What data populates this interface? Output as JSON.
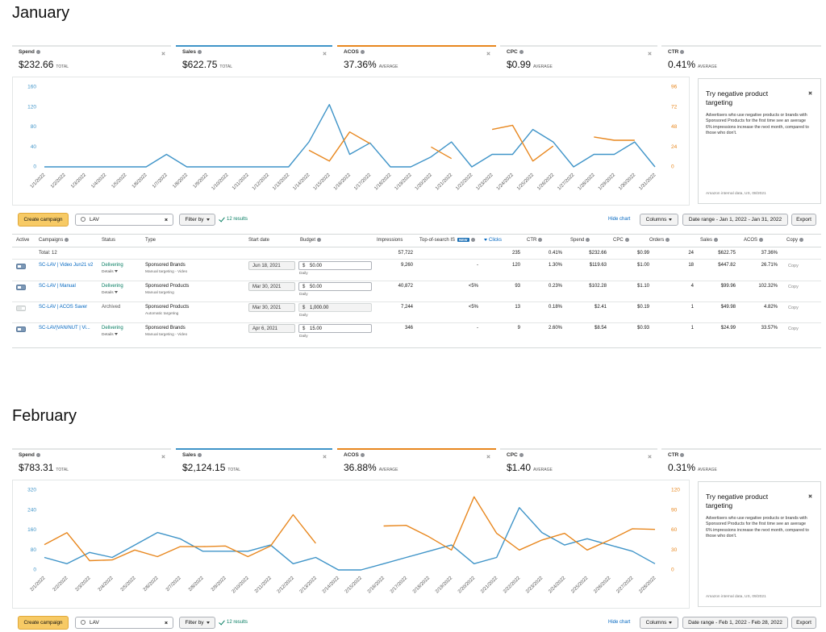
{
  "sections": [
    {
      "heading": "January",
      "metrics": [
        {
          "label": "Spend",
          "value": "$232.66",
          "agg": "TOTAL"
        },
        {
          "label": "Sales",
          "value": "$622.75",
          "agg": "TOTAL",
          "color": "#3f94c8"
        },
        {
          "label": "ACOS",
          "value": "37.36%",
          "agg": "AVERAGE",
          "color": "#e8871e"
        },
        {
          "label": "CPC",
          "value": "$0.99",
          "agg": "AVERAGE"
        },
        {
          "label": "CTR",
          "value": "0.41%",
          "agg": "AVERAGE"
        }
      ],
      "chart": {
        "type": "line",
        "x": [
          "1/1/2022",
          "1/2/2022",
          "1/3/2022",
          "1/4/2022",
          "1/5/2022",
          "1/6/2022",
          "1/7/2022",
          "1/8/2022",
          "1/9/2022",
          "1/10/2022",
          "1/11/2022",
          "1/12/2022",
          "1/13/2022",
          "1/14/2022",
          "1/15/2022",
          "1/16/2022",
          "1/17/2022",
          "1/18/2022",
          "1/19/2022",
          "1/20/2022",
          "1/21/2022",
          "1/22/2022",
          "1/23/2022",
          "1/24/2022",
          "1/25/2022",
          "1/26/2022",
          "1/27/2022",
          "1/28/2022",
          "1/29/2022",
          "1/30/2022",
          "1/31/2022"
        ],
        "ylim": [
          0,
          160
        ],
        "yticks": [
          0,
          40,
          80,
          120,
          160
        ],
        "y2lim": [
          0,
          96
        ],
        "y2ticks": [
          0,
          24,
          48,
          72,
          96
        ],
        "series": [
          {
            "color": "#3f94c8",
            "values": [
              0,
              0,
              0,
              0,
              0,
              0,
              25,
              0,
              0,
              0,
              0,
              0,
              0,
              50,
              125,
              25,
              48,
              0,
              0,
              20,
              50,
              0,
              25,
              25,
              75,
              50,
              0,
              25,
              25,
              50,
              0
            ]
          },
          {
            "color": "#e8871e",
            "axis": "y2",
            "values": [
              null,
              null,
              null,
              null,
              null,
              null,
              null,
              null,
              null,
              null,
              null,
              null,
              null,
              20,
              7,
              42,
              28,
              null,
              null,
              24,
              10,
              null,
              45,
              50,
              7,
              25,
              null,
              36,
              32,
              32,
              null
            ]
          }
        ]
      },
      "panel": {
        "title": "Try negative product targeting",
        "body": "Advertisers who use negative products or brands with Sponsored Products for the first time see an average 6% impressions increase the next month, compared to those who don't.",
        "footnote": "Amazon internal data, US, 08/2021"
      },
      "toolbar": {
        "create": "Create campaign",
        "search": "LAV",
        "filter": "Filter by",
        "results": "12 results",
        "hide_chart": "Hide chart",
        "columns": "Columns",
        "date_range": "Date range - Jan 1, 2022 - Jan 31, 2022",
        "export": "Export"
      },
      "table": {
        "columns": [
          "Active",
          "Campaigns",
          "Status",
          "Type",
          "Start date",
          "Budget",
          "Impressions",
          "Top-of-search IS",
          "Clicks",
          "CTR",
          "Spend",
          "CPC",
          "Orders",
          "Sales",
          "ACOS",
          "Copy"
        ],
        "badge": "NEW",
        "total": {
          "label": "Total: 12",
          "impressions": "57,722",
          "clicks": "235",
          "ctr": "0.41%",
          "spend": "$232.66",
          "cpc": "$0.99",
          "orders": "24",
          "sales": "$622.75",
          "acos": "37.36%"
        },
        "rows": [
          {
            "active": true,
            "name": "SC-LAV | Video Jun21 v2",
            "status": "Delivering",
            "status_color": "#067d62",
            "details": "Details",
            "type": "Sponsored Brands",
            "targeting": "Manual targeting - Video",
            "start": "Jun 18, 2021",
            "currency": "$",
            "budget": "50.00",
            "period": "Daily",
            "impressions": "9,260",
            "tos": "-",
            "clicks": "120",
            "ctr": "1.30%",
            "spend": "$119.63",
            "cpc": "$1.00",
            "orders": "18",
            "sales": "$447.82",
            "acos": "26.71%",
            "copy": "Copy"
          },
          {
            "active": true,
            "name": "SC-LAV | Manual",
            "status": "Delivering",
            "status_color": "#067d62",
            "details": "Details",
            "type": "Sponsored Products",
            "targeting": "Manual targeting",
            "start": "Mar 30, 2021",
            "currency": "$",
            "budget": "50.00",
            "period": "Daily",
            "impressions": "40,872",
            "tos": "<5%",
            "clicks": "93",
            "ctr": "0.23%",
            "spend": "$102.28",
            "cpc": "$1.10",
            "orders": "4",
            "sales": "$99.96",
            "acos": "102.32%",
            "copy": "Copy"
          },
          {
            "active": false,
            "name": "SC-LAV | ACOS Saver",
            "status": "Archived",
            "status_color": "#555555",
            "type": "Sponsored Products",
            "targeting": "Automatic targeting",
            "start": "Mar 30, 2021",
            "currency": "$",
            "budget": "1,000.00",
            "period": "Daily",
            "impressions": "7,244",
            "tos": "<5%",
            "clicks": "13",
            "ctr": "0.18%",
            "spend": "$2.41",
            "cpc": "$0.19",
            "orders": "1",
            "sales": "$49.98",
            "acos": "4.82%",
            "copy": "Copy"
          },
          {
            "active": true,
            "name": "SC-LAV|VAN/NUT | Vi...",
            "status": "Delivering",
            "status_color": "#067d62",
            "details": "Details",
            "type": "Sponsored Brands",
            "targeting": "Manual targeting - Video",
            "start": "Apr 6, 2021",
            "currency": "$",
            "budget": "15.00",
            "period": "Daily",
            "impressions": "346",
            "tos": "-",
            "clicks": "9",
            "ctr": "2.60%",
            "spend": "$8.54",
            "cpc": "$0.93",
            "orders": "1",
            "sales": "$24.99",
            "acos": "33.57%",
            "copy": "Copy"
          }
        ]
      }
    },
    {
      "heading": "February",
      "metrics": [
        {
          "label": "Spend",
          "value": "$783.31",
          "agg": "TOTAL"
        },
        {
          "label": "Sales",
          "value": "$2,124.15",
          "agg": "TOTAL",
          "color": "#3f94c8"
        },
        {
          "label": "ACOS",
          "value": "36.88%",
          "agg": "AVERAGE",
          "color": "#e8871e"
        },
        {
          "label": "CPC",
          "value": "$1.40",
          "agg": "AVERAGE"
        },
        {
          "label": "CTR",
          "value": "0.31%",
          "agg": "AVERAGE"
        }
      ],
      "chart": {
        "type": "line",
        "x": [
          "2/1/2022",
          "2/2/2022",
          "2/3/2022",
          "2/4/2022",
          "2/5/2022",
          "2/6/2022",
          "2/7/2022",
          "2/8/2022",
          "2/9/2022",
          "2/10/2022",
          "2/11/2022",
          "2/12/2022",
          "2/13/2022",
          "2/14/2022",
          "2/15/2022",
          "2/16/2022",
          "2/17/2022",
          "2/18/2022",
          "2/19/2022",
          "2/20/2022",
          "2/21/2022",
          "2/22/2022",
          "2/23/2022",
          "2/24/2022",
          "2/25/2022",
          "2/26/2022",
          "2/27/2022",
          "2/28/2022"
        ],
        "ylim": [
          0,
          320
        ],
        "yticks": [
          0,
          80,
          160,
          240,
          320
        ],
        "y2lim": [
          0,
          120
        ],
        "y2ticks": [
          0,
          30,
          60,
          90,
          120
        ],
        "series": [
          {
            "color": "#3f94c8",
            "values": [
              50,
              25,
              70,
              50,
              100,
              150,
              125,
              75,
              75,
              75,
              100,
              25,
              50,
              0,
              0,
              25,
              50,
              75,
              100,
              25,
              50,
              250,
              150,
              100,
              125,
              100,
              75,
              25
            ]
          },
          {
            "color": "#e8871e",
            "axis": "y2",
            "values": [
              38,
              56,
              14,
              15,
              30,
              20,
              35,
              35,
              36,
              20,
              36,
              83,
              40,
              null,
              null,
              66,
              67,
              50,
              30,
              110,
              55,
              30,
              45,
              55,
              30,
              45,
              62,
              61
            ]
          }
        ]
      },
      "panel": {
        "title": "Try negative product targeting",
        "body": "Advertisers who use negative products or brands with Sponsored Products for the first time see an average 6% impressions increase the next month, compared to those who don't.",
        "footnote": "Amazon internal data, US, 09/2021"
      },
      "toolbar": {
        "create": "Create campaign",
        "search": "LAV",
        "filter": "Filter by",
        "results": "12 results",
        "hide_chart": "Hide chart",
        "columns": "Columns",
        "date_range": "Date range - Feb 1, 2022 - Feb 28, 2022",
        "export": "Export"
      }
    }
  ]
}
